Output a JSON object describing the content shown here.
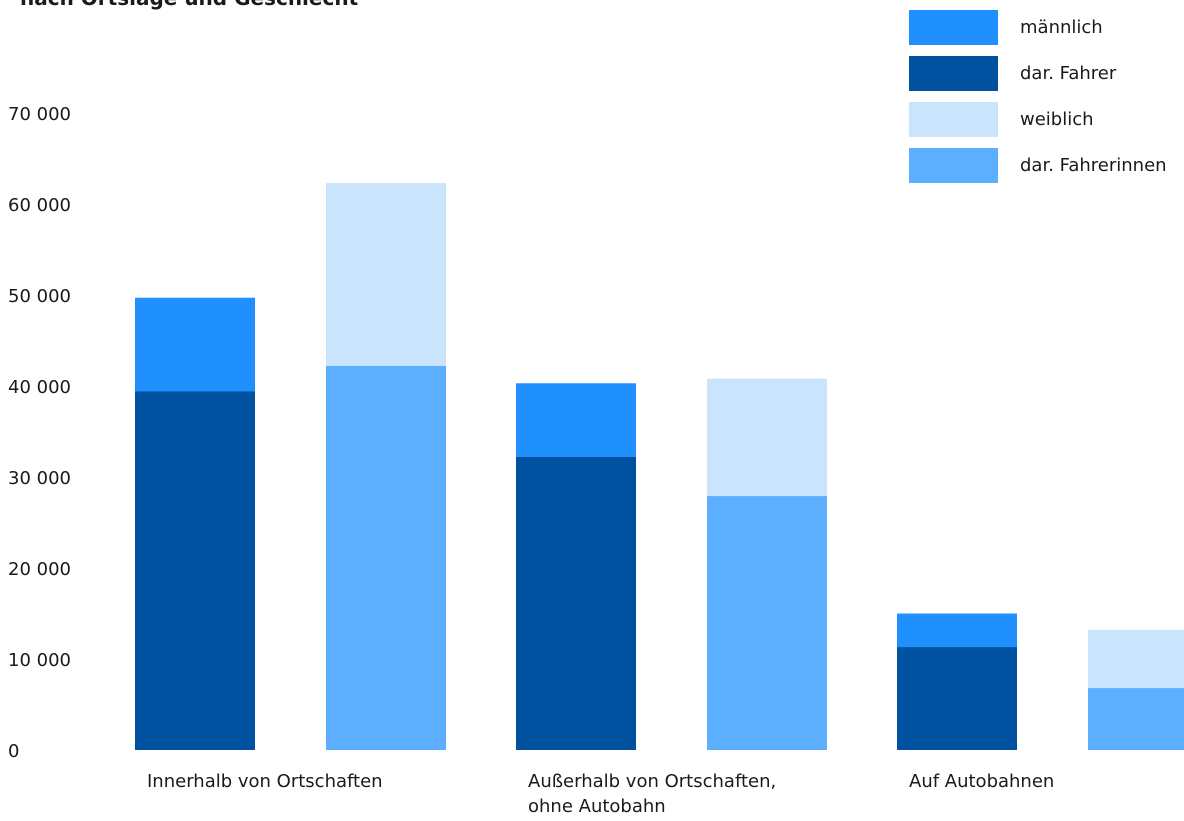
{
  "chart_data": {
    "type": "bar",
    "title": "nach Ortslage und Geschlecht",
    "categories": [
      [
        "Innerhalb von Ortschaften"
      ],
      [
        "Außerhalb von Ortschaften,",
        "ohne Autobahn"
      ],
      [
        "Auf Autobahnen"
      ]
    ],
    "series": [
      {
        "name": "männlich",
        "values": [
          49700,
          40300,
          15000
        ],
        "color": "#2190ff"
      },
      {
        "name": "dar. Fahrer",
        "values": [
          39400,
          32200,
          11300
        ],
        "color": "#00519f"
      },
      {
        "name": "weiblich",
        "values": [
          62300,
          40800,
          13200
        ],
        "color": "#cbe4fd"
      },
      {
        "name": "dar. Fahrerinnen",
        "values": [
          42200,
          27900,
          6800
        ],
        "color": "#5caeff"
      }
    ],
    "y_ticks": [
      "0",
      "10 000",
      "20 000",
      "30 000",
      "40 000",
      "50 000",
      "60 000",
      "70 000"
    ],
    "ylim": [
      0,
      70000
    ],
    "grid": false,
    "legend_position": "top-right"
  }
}
